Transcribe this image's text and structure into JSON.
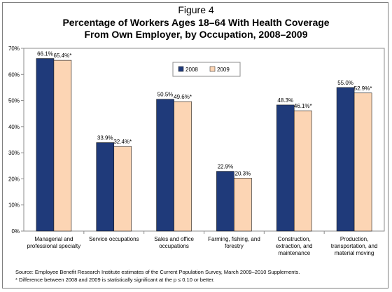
{
  "figure_label": "Figure 4",
  "title_lines": [
    "Percentage of Workers Ages 18–64 With Health Coverage",
    "From Own Employer, by Occupation, 2008–2009"
  ],
  "source_note": "Source: Employee Benefit Research Institute estimates of the Current Population Survey, March 2009–2010 Supplements.",
  "significance_note": "* Difference between 2008 and 2009 is statistically significant at the p ≤ 0.10 or better.",
  "chart_data": {
    "type": "bar",
    "categories": [
      [
        "Managerial and",
        "professional specialty"
      ],
      [
        "Service occupations"
      ],
      [
        "Sales and office",
        "occupations"
      ],
      [
        "Farming, fishing, and",
        "forestry"
      ],
      [
        "Construction,",
        "extraction, and",
        "maintenance"
      ],
      [
        "Production,",
        "transportation, and",
        "material moving"
      ]
    ],
    "series": [
      {
        "name": "2008",
        "color": "#1f3a7a",
        "values": [
          66.1,
          33.9,
          50.5,
          22.9,
          48.3,
          55.0
        ],
        "labels": [
          "66.1%",
          "33.9%",
          "50.5%",
          "22.9%",
          "48.3%",
          "55.0%"
        ]
      },
      {
        "name": "2009",
        "color": "#fcd5b4",
        "values": [
          65.4,
          32.4,
          49.6,
          20.3,
          46.1,
          52.9
        ],
        "labels": [
          "65.4%*",
          "32.4%*",
          "49.6%*",
          "20.3%",
          "46.1%*",
          "52.9%*"
        ]
      }
    ],
    "yticks": [
      "0%",
      "10%",
      "20%",
      "30%",
      "40%",
      "50%",
      "60%",
      "70%"
    ],
    "ylim": [
      0,
      70
    ],
    "grid": false,
    "legend_position": "top-center"
  }
}
